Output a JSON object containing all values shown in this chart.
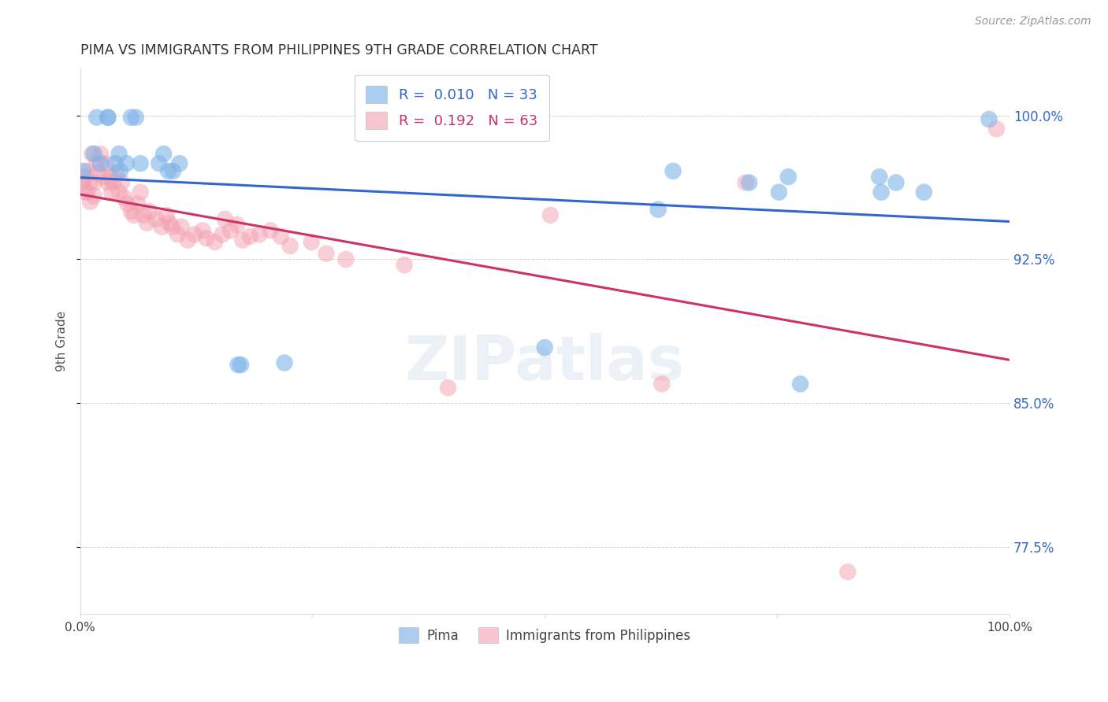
{
  "title": "PIMA VS IMMIGRANTS FROM PHILIPPINES 9TH GRADE CORRELATION CHART",
  "source": "Source: ZipAtlas.com",
  "ylabel": "9th Grade",
  "ytick_labels": [
    "77.5%",
    "85.0%",
    "92.5%",
    "100.0%"
  ],
  "ytick_values": [
    0.775,
    0.85,
    0.925,
    1.0
  ],
  "legend_blue_r": "0.010",
  "legend_blue_n": "33",
  "legend_pink_r": "0.192",
  "legend_pink_n": "63",
  "blue_color": "#7EB3E8",
  "pink_color": "#F4A0B0",
  "blue_line_color": "#3366CC",
  "pink_line_color": "#CC3366",
  "background_color": "#ffffff",
  "blue_x": [
    0.003,
    0.015,
    0.018,
    0.022,
    0.03,
    0.03,
    0.038,
    0.042,
    0.043,
    0.05,
    0.055,
    0.06,
    0.065,
    0.085,
    0.09,
    0.095,
    0.1,
    0.107,
    0.17,
    0.173,
    0.22,
    0.5,
    0.622,
    0.638,
    0.72,
    0.752,
    0.762,
    0.775,
    0.86,
    0.862,
    0.878,
    0.908,
    0.978
  ],
  "blue_y": [
    0.971,
    0.98,
    0.999,
    0.975,
    0.999,
    0.999,
    0.975,
    0.98,
    0.971,
    0.975,
    0.999,
    0.999,
    0.975,
    0.975,
    0.98,
    0.971,
    0.971,
    0.975,
    0.87,
    0.87,
    0.871,
    0.879,
    0.951,
    0.971,
    0.965,
    0.96,
    0.968,
    0.86,
    0.968,
    0.96,
    0.965,
    0.96,
    0.998
  ],
  "pink_x": [
    0.003,
    0.005,
    0.006,
    0.008,
    0.008,
    0.01,
    0.011,
    0.013,
    0.015,
    0.015,
    0.018,
    0.02,
    0.022,
    0.025,
    0.028,
    0.03,
    0.032,
    0.034,
    0.036,
    0.039,
    0.042,
    0.045,
    0.048,
    0.051,
    0.055,
    0.058,
    0.062,
    0.065,
    0.068,
    0.072,
    0.075,
    0.082,
    0.088,
    0.093,
    0.096,
    0.099,
    0.105,
    0.109,
    0.116,
    0.123,
    0.132,
    0.136,
    0.145,
    0.153,
    0.156,
    0.162,
    0.169,
    0.175,
    0.183,
    0.193,
    0.205,
    0.216,
    0.226,
    0.249,
    0.265,
    0.286,
    0.349,
    0.396,
    0.506,
    0.626,
    0.716,
    0.826,
    0.986
  ],
  "pink_y": [
    0.965,
    0.968,
    0.96,
    0.971,
    0.96,
    0.965,
    0.955,
    0.98,
    0.965,
    0.958,
    0.975,
    0.97,
    0.98,
    0.968,
    0.975,
    0.965,
    0.968,
    0.96,
    0.965,
    0.97,
    0.96,
    0.965,
    0.957,
    0.954,
    0.95,
    0.948,
    0.954,
    0.96,
    0.948,
    0.944,
    0.95,
    0.946,
    0.942,
    0.948,
    0.944,
    0.942,
    0.938,
    0.942,
    0.935,
    0.938,
    0.94,
    0.936,
    0.934,
    0.938,
    0.946,
    0.94,
    0.943,
    0.935,
    0.937,
    0.938,
    0.94,
    0.937,
    0.932,
    0.934,
    0.928,
    0.925,
    0.922,
    0.858,
    0.948,
    0.86,
    0.965,
    0.762,
    0.993
  ],
  "xlim": [
    0.0,
    1.0
  ],
  "ylim": [
    0.74,
    1.025
  ]
}
